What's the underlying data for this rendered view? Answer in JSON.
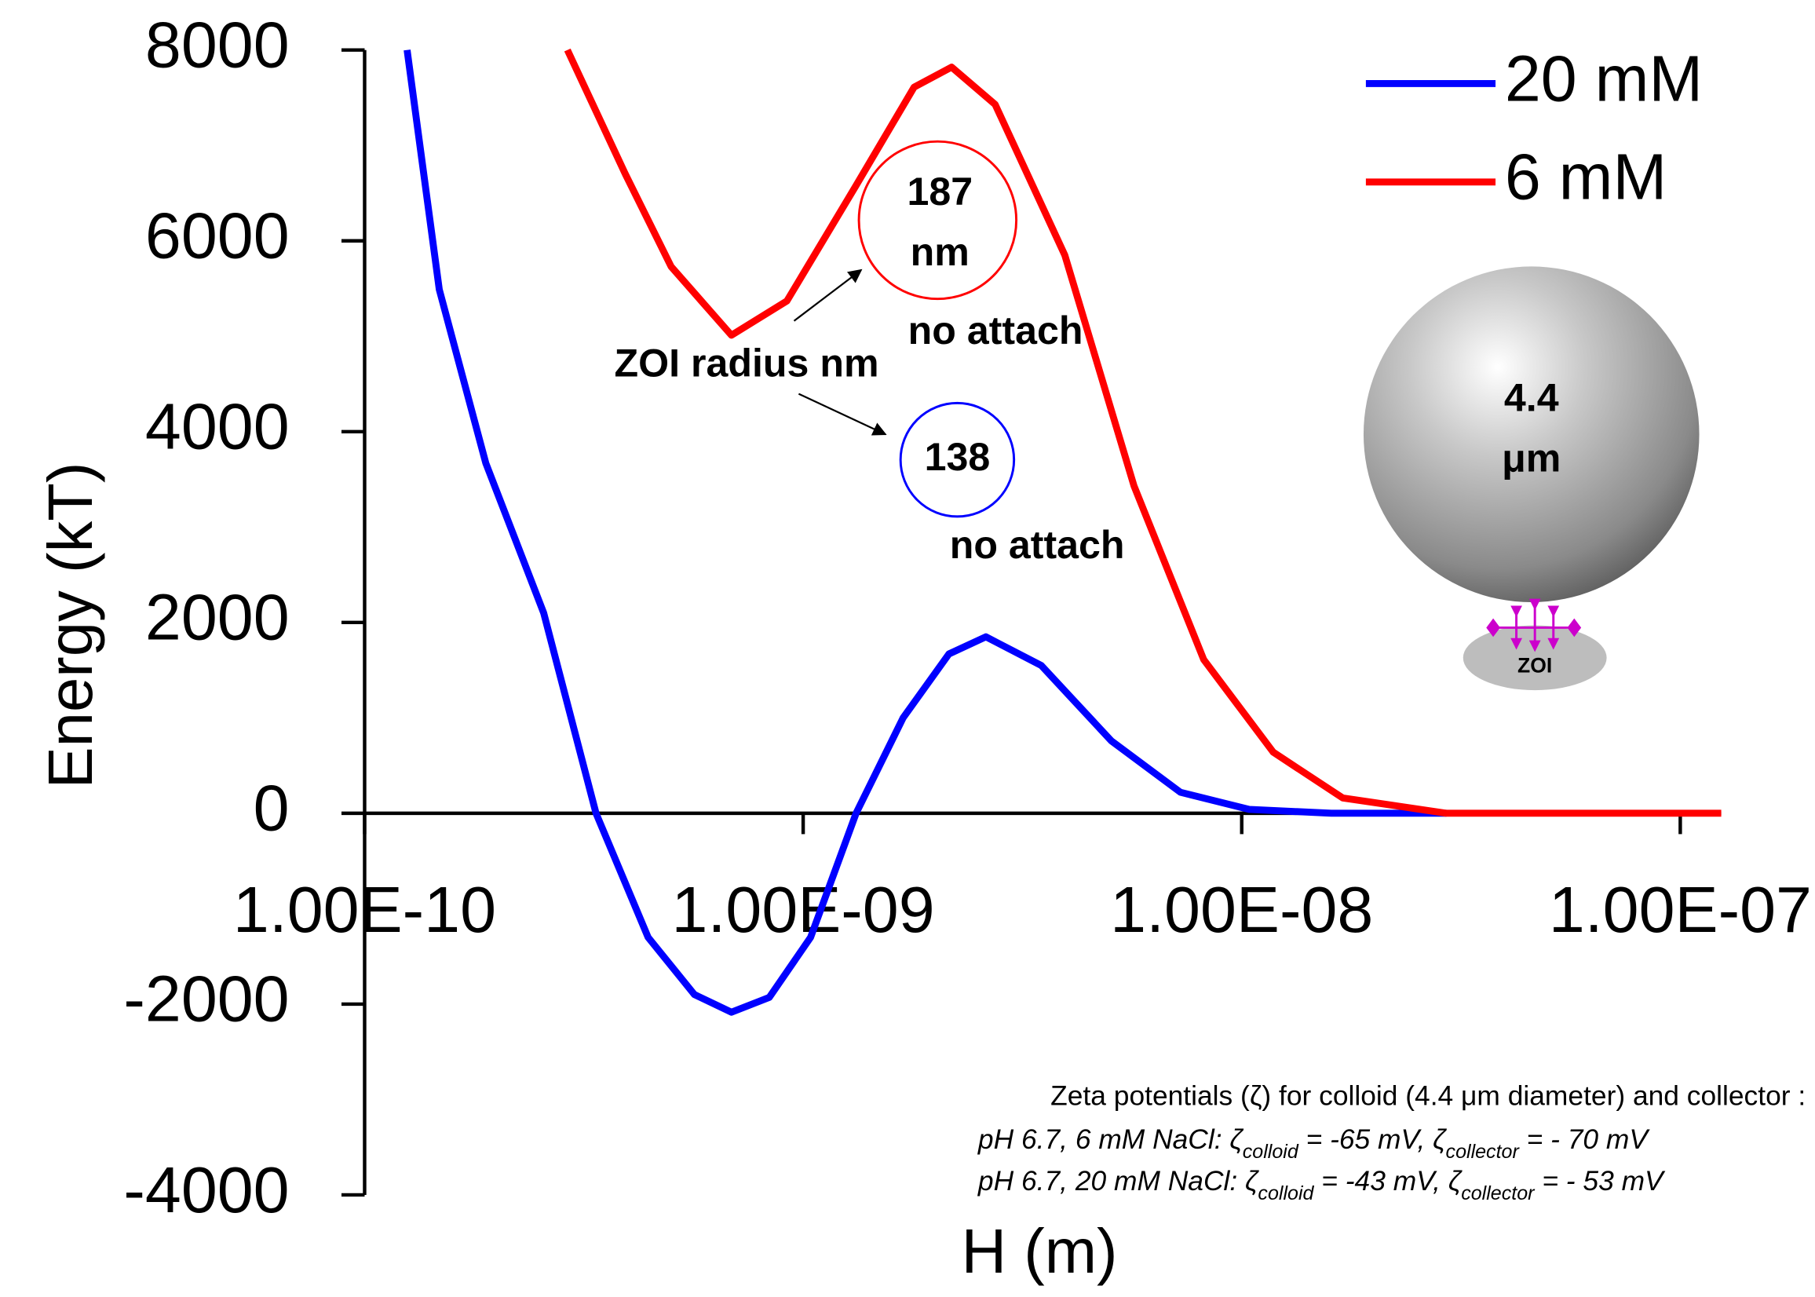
{
  "chart_data": {
    "type": "line",
    "xlabel": "H (m)",
    "ylabel": "Energy (kT)",
    "xscale": "log",
    "xlim": [
      1e-10,
      1.24e-07
    ],
    "xticks": [
      {
        "value": 1e-10,
        "label": "1.00E-10"
      },
      {
        "value": 1e-09,
        "label": "1.00E-09"
      },
      {
        "value": 1e-08,
        "label": "1.00E-08"
      },
      {
        "value": 1e-07,
        "label": "1.00E-07"
      }
    ],
    "ylim": [
      -4000,
      8000
    ],
    "yticks": [
      8000,
      6000,
      4000,
      2000,
      0,
      -2000,
      -4000
    ],
    "legend": "top-right",
    "series": [
      {
        "name": "20 mM",
        "color": "#0000ff",
        "x": [
          1.25e-10,
          1.48e-10,
          1.89e-10,
          2.56e-10,
          3.37e-10,
          4.43e-10,
          5.65e-10,
          6.86e-10,
          8.37e-10,
          1.04e-09,
          1.32e-09,
          1.69e-09,
          2.15e-09,
          2.61e-09,
          3.49e-09,
          5.04e-09,
          7.25e-09,
          1.04e-08,
          1.6e-08,
          2.93e-08
        ],
        "values": [
          8000,
          5490,
          3670,
          2100,
          0,
          -1300,
          -1900,
          -2085,
          -1930,
          -1300,
          0,
          1000,
          1670,
          1850,
          1550,
          760,
          220,
          40,
          0,
          0
        ]
      },
      {
        "name": "6 mM",
        "color": "#ff0000",
        "x": [
          2.9e-10,
          3.93e-10,
          5e-10,
          6.86e-10,
          9.18e-10,
          1.32e-09,
          1.79e-09,
          2.18e-09,
          2.74e-09,
          3.95e-09,
          5.68e-09,
          8.19e-09,
          1.18e-08,
          1.7e-08,
          2.93e-08,
          1.24e-07
        ],
        "values": [
          8000,
          6700,
          5730,
          5010,
          5370,
          6580,
          7610,
          7820,
          7430,
          5850,
          3430,
          1610,
          640,
          160,
          0,
          0
        ]
      }
    ],
    "annotations": {
      "zoi_radius": "ZOI radius nm",
      "zoi_6mM": [
        "187",
        "nm"
      ],
      "attach_6mM": "no attach",
      "zoi_20mM": "138",
      "attach_20mM": "no attach",
      "particle": [
        "4.4",
        "μm"
      ],
      "zoi_label": "ZOI",
      "zeta_title": "Zeta potentials (ζ) for colloid (4.4 μm diameter) and collector :",
      "zeta_lines": [
        [
          "pH 6.7, 6 mM NaCl: ζ",
          "colloid",
          " = -65 mV, ζ",
          "collector",
          " = - 70 mV"
        ],
        [
          "pH 6.7, 20 mM NaCl: ζ",
          "colloid",
          " = -43 mV, ζ",
          "collector",
          " = - 53 mV"
        ]
      ]
    }
  }
}
